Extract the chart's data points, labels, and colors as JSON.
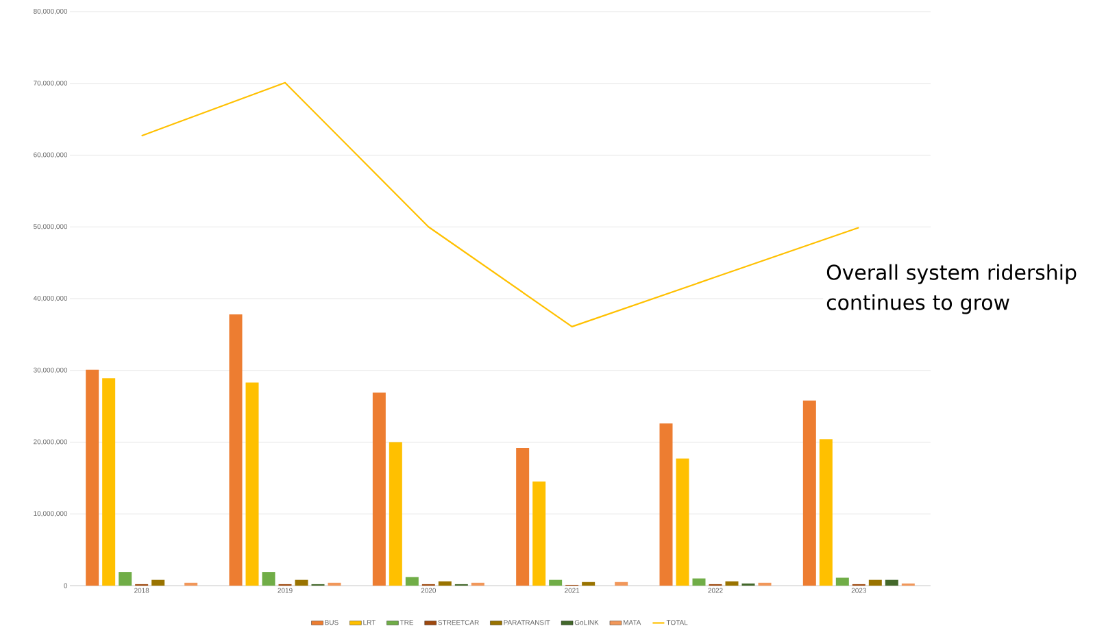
{
  "chart_data": {
    "type": "bar",
    "categories": [
      "2018",
      "2019",
      "2020",
      "2021",
      "2022",
      "2023"
    ],
    "series": [
      {
        "name": "BUS",
        "color": "#ed7d31",
        "values": [
          30100000,
          37800000,
          26900000,
          19200000,
          22600000,
          25800000
        ]
      },
      {
        "name": "LRT",
        "color": "#ffc000",
        "values": [
          28900000,
          28300000,
          20000000,
          14500000,
          17700000,
          20400000
        ]
      },
      {
        "name": "TRE",
        "color": "#70ad47",
        "values": [
          1900000,
          1900000,
          1200000,
          800000,
          1000000,
          1100000
        ]
      },
      {
        "name": "STREETCAR",
        "color": "#9e480e",
        "values": [
          200000,
          200000,
          200000,
          100000,
          200000,
          200000
        ]
      },
      {
        "name": "PARATRANSIT",
        "color": "#997300",
        "values": [
          800000,
          800000,
          600000,
          500000,
          600000,
          800000
        ]
      },
      {
        "name": "GoLINK",
        "color": "#43682b",
        "values": [
          null,
          200000,
          200000,
          null,
          300000,
          800000
        ]
      },
      {
        "name": "MATA",
        "color": "#f1975a",
        "values": [
          400000,
          400000,
          400000,
          500000,
          400000,
          300000
        ]
      },
      {
        "name": "TOTAL",
        "type": "line",
        "color": "#ffc000",
        "values": [
          62700000,
          70100000,
          50000000,
          36100000,
          43000000,
          49900000
        ]
      }
    ],
    "ylim": [
      0,
      80000000
    ],
    "yticks": [
      {
        "value": 0,
        "label": "0"
      },
      {
        "value": 10000000,
        "label": "10,000,000"
      },
      {
        "value": 20000000,
        "label": "20,000,000"
      },
      {
        "value": 30000000,
        "label": "30,000,000"
      },
      {
        "value": 40000000,
        "label": "40,000,000"
      },
      {
        "value": 50000000,
        "label": "50,000,000"
      },
      {
        "value": 60000000,
        "label": "60,000,000"
      },
      {
        "value": 70000000,
        "label": "70,000,000"
      },
      {
        "value": 80000000,
        "label": "80,000,000"
      }
    ],
    "grid": "y",
    "legend": "bottom",
    "annotations": [
      "Overall system ridership continues to grow"
    ]
  }
}
